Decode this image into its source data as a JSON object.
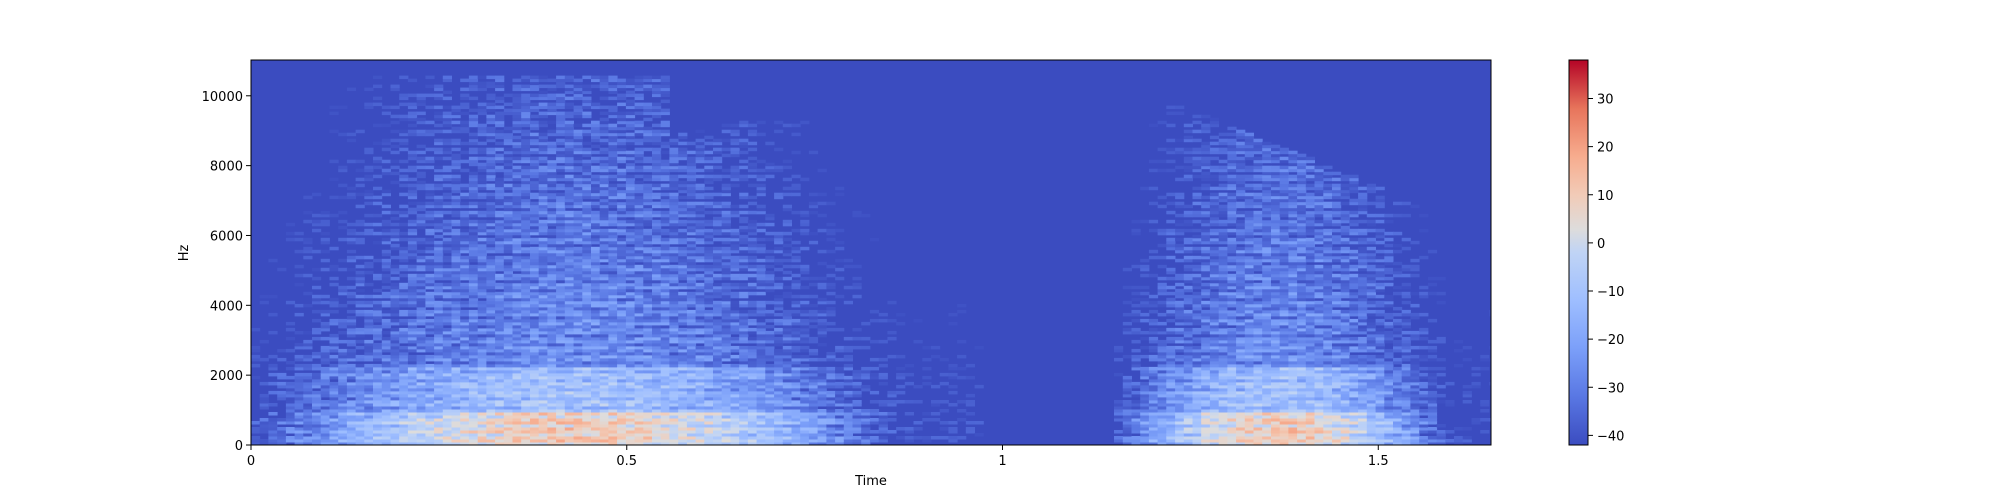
{
  "chart_data": {
    "type": "heatmap",
    "title": "",
    "xlabel": "Time",
    "ylabel": "Hz",
    "xlim": [
      0,
      1.65
    ],
    "ylim": [
      0,
      11025
    ],
    "x_ticks": [
      0,
      0.5,
      1,
      1.5
    ],
    "x_tick_labels": [
      "0",
      "0.5",
      "1",
      "1.5"
    ],
    "y_ticks": [
      0,
      2000,
      4000,
      6000,
      8000,
      10000
    ],
    "y_tick_labels": [
      "0",
      "2000",
      "4000",
      "6000",
      "8000",
      "10000"
    ],
    "colorbar": {
      "colormap": "coolwarm",
      "range": [
        -42,
        38
      ],
      "ticks": [
        -40,
        -30,
        -20,
        -10,
        0,
        10,
        20,
        30
      ],
      "tick_labels": [
        "−40",
        "−30",
        "−20",
        "−10",
        "0",
        "10",
        "20",
        "30"
      ]
    },
    "segments": [
      {
        "start": 0.0,
        "end": 0.97,
        "description_level_db": -20
      },
      {
        "start": 1.14,
        "end": 1.65,
        "description_level_db": -18
      }
    ],
    "colors": {
      "background_low": "#3b4cc0",
      "mid": "#dddddd",
      "high": "#b40426"
    }
  }
}
